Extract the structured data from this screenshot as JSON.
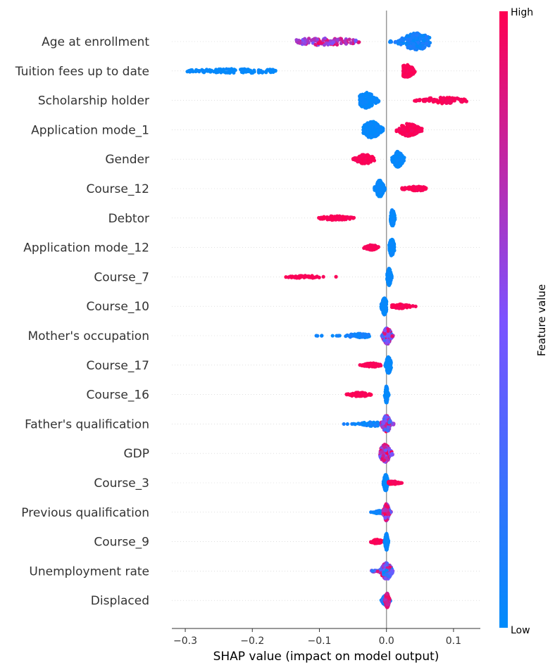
{
  "chart_data": {
    "type": "scatter",
    "xlabel": "SHAP value (impact on model output)",
    "xlim": [
      -0.32,
      0.14
    ],
    "xticks": [
      -0.3,
      -0.2,
      -0.1,
      0.0,
      0.1
    ],
    "xtick_labels": [
      "−0.3",
      "−0.2",
      "−0.1",
      "0.0",
      "0.1"
    ],
    "colorbar": {
      "label": "Feature value",
      "high_label": "High",
      "low_label": "Low",
      "low_color": "#008bfb",
      "mid_color": "#7c52ff",
      "high_color": "#ff0051"
    },
    "features": [
      {
        "name": "Age at enrollment",
        "clusters": [
          {
            "min": -0.135,
            "max": -0.04,
            "peak": -0.095,
            "spread": 0.028,
            "value_min": 0.45,
            "value_max": 1.0,
            "count": 110,
            "h": 0.35
          },
          {
            "min": 0.005,
            "max": 0.065,
            "peak": 0.045,
            "spread": 0.012,
            "value_min": 0.0,
            "value_max": 0.15,
            "count": 200,
            "h": 0.8
          }
        ]
      },
      {
        "name": "Tuition fees up to date",
        "clusters": [
          {
            "min": -0.3,
            "max": -0.165,
            "peak": -0.22,
            "spread": 0.04,
            "value_min": 0.0,
            "value_max": 0.04,
            "count": 110,
            "h": 0.2
          },
          {
            "min": 0.025,
            "max": 0.045,
            "peak": 0.03,
            "spread": 0.006,
            "value_min": 0.96,
            "value_max": 1.0,
            "count": 120,
            "h": 0.6
          }
        ]
      },
      {
        "name": "Scholarship holder",
        "clusters": [
          {
            "min": -0.04,
            "max": -0.01,
            "peak": -0.03,
            "spread": 0.007,
            "value_min": 0.0,
            "value_max": 0.05,
            "count": 180,
            "h": 0.75
          },
          {
            "min": 0.04,
            "max": 0.12,
            "peak": 0.085,
            "spread": 0.018,
            "value_min": 0.95,
            "value_max": 1.0,
            "count": 100,
            "h": 0.3
          }
        ]
      },
      {
        "name": "Application mode_1",
        "clusters": [
          {
            "min": -0.035,
            "max": -0.005,
            "peak": -0.022,
            "spread": 0.007,
            "value_min": 0.0,
            "value_max": 0.05,
            "count": 200,
            "h": 0.8
          },
          {
            "min": 0.015,
            "max": 0.055,
            "peak": 0.033,
            "spread": 0.008,
            "value_min": 0.95,
            "value_max": 1.0,
            "count": 160,
            "h": 0.6
          }
        ]
      },
      {
        "name": "Gender",
        "clusters": [
          {
            "min": -0.05,
            "max": -0.018,
            "peak": -0.032,
            "spread": 0.007,
            "value_min": 0.96,
            "value_max": 1.0,
            "count": 120,
            "h": 0.45
          },
          {
            "min": 0.008,
            "max": 0.027,
            "peak": 0.017,
            "spread": 0.004,
            "value_min": 0.0,
            "value_max": 0.05,
            "count": 180,
            "h": 0.75
          }
        ]
      },
      {
        "name": "Course_12",
        "clusters": [
          {
            "min": -0.018,
            "max": -0.002,
            "peak": -0.01,
            "spread": 0.003,
            "value_min": 0.0,
            "value_max": 0.05,
            "count": 180,
            "h": 0.8
          },
          {
            "min": 0.015,
            "max": 0.06,
            "peak": 0.045,
            "spread": 0.01,
            "value_min": 0.95,
            "value_max": 1.0,
            "count": 80,
            "h": 0.2
          }
        ]
      },
      {
        "name": "Debtor",
        "clusters": [
          {
            "min": -0.105,
            "max": -0.047,
            "peak": -0.075,
            "spread": 0.012,
            "value_min": 0.96,
            "value_max": 1.0,
            "count": 90,
            "h": 0.2
          },
          {
            "min": 0.006,
            "max": 0.013,
            "peak": 0.009,
            "spread": 0.0015,
            "value_min": 0.0,
            "value_max": 0.05,
            "count": 180,
            "h": 0.8
          }
        ]
      },
      {
        "name": "Application mode_12",
        "clusters": [
          {
            "min": -0.035,
            "max": -0.01,
            "peak": -0.022,
            "spread": 0.005,
            "value_min": 0.96,
            "value_max": 1.0,
            "count": 80,
            "h": 0.25
          },
          {
            "min": 0.004,
            "max": 0.012,
            "peak": 0.008,
            "spread": 0.002,
            "value_min": 0.0,
            "value_max": 0.05,
            "count": 180,
            "h": 0.8
          }
        ]
      },
      {
        "name": "Course_7",
        "clusters": [
          {
            "min": -0.15,
            "max": -0.075,
            "peak": -0.12,
            "spread": 0.015,
            "value_min": 0.96,
            "value_max": 1.0,
            "count": 45,
            "h": 0.12
          },
          {
            "min": 0.001,
            "max": 0.008,
            "peak": 0.004,
            "spread": 0.0015,
            "value_min": 0.0,
            "value_max": 0.05,
            "count": 180,
            "h": 0.8
          }
        ]
      },
      {
        "name": "Course_10",
        "clusters": [
          {
            "min": -0.008,
            "max": 0.0,
            "peak": -0.003,
            "spread": 0.002,
            "value_min": 0.0,
            "value_max": 0.05,
            "count": 180,
            "h": 0.8
          },
          {
            "min": 0.008,
            "max": 0.045,
            "peak": 0.02,
            "spread": 0.008,
            "value_min": 0.95,
            "value_max": 1.0,
            "count": 70,
            "h": 0.2
          }
        ]
      },
      {
        "name": "Mother's occupation",
        "clusters": [
          {
            "min": -0.11,
            "max": -0.025,
            "peak": -0.04,
            "spread": 0.01,
            "value_min": 0.0,
            "value_max": 0.15,
            "count": 80,
            "h": 0.2
          },
          {
            "min": -0.008,
            "max": 0.01,
            "peak": 0.001,
            "spread": 0.003,
            "value_min": 0.2,
            "value_max": 1.0,
            "count": 200,
            "h": 0.8
          }
        ]
      },
      {
        "name": "Course_17",
        "clusters": [
          {
            "min": -0.04,
            "max": -0.008,
            "peak": -0.022,
            "spread": 0.006,
            "value_min": 0.96,
            "value_max": 1.0,
            "count": 70,
            "h": 0.2
          },
          {
            "min": -0.002,
            "max": 0.007,
            "peak": 0.003,
            "spread": 0.002,
            "value_min": 0.0,
            "value_max": 0.05,
            "count": 180,
            "h": 0.8
          }
        ]
      },
      {
        "name": "Course_16",
        "clusters": [
          {
            "min": -0.06,
            "max": -0.02,
            "peak": -0.04,
            "spread": 0.008,
            "value_min": 0.96,
            "value_max": 1.0,
            "count": 65,
            "h": 0.2
          },
          {
            "min": -0.003,
            "max": 0.004,
            "peak": 0.0,
            "spread": 0.001,
            "value_min": 0.0,
            "value_max": 0.05,
            "count": 180,
            "h": 0.8
          }
        ]
      },
      {
        "name": "Father's qualification",
        "clusters": [
          {
            "min": -0.075,
            "max": -0.012,
            "peak": -0.02,
            "spread": 0.01,
            "value_min": 0.0,
            "value_max": 0.12,
            "count": 70,
            "h": 0.2
          },
          {
            "min": -0.008,
            "max": 0.012,
            "peak": 0.0,
            "spread": 0.003,
            "value_min": 0.2,
            "value_max": 1.0,
            "count": 200,
            "h": 0.8
          }
        ]
      },
      {
        "name": "GDP",
        "clusters": [
          {
            "min": -0.01,
            "max": 0.012,
            "peak": -0.002,
            "spread": 0.004,
            "value_min": 0.3,
            "value_max": 1.0,
            "count": 260,
            "h": 0.85
          }
        ]
      },
      {
        "name": "Course_3",
        "clusters": [
          {
            "min": -0.005,
            "max": 0.003,
            "peak": -0.001,
            "spread": 0.0015,
            "value_min": 0.0,
            "value_max": 0.05,
            "count": 180,
            "h": 0.8
          },
          {
            "min": 0.003,
            "max": 0.024,
            "peak": 0.01,
            "spread": 0.005,
            "value_min": 0.95,
            "value_max": 1.0,
            "count": 60,
            "h": 0.15
          }
        ]
      },
      {
        "name": "Previous qualification",
        "clusters": [
          {
            "min": -0.025,
            "max": -0.005,
            "peak": -0.01,
            "spread": 0.004,
            "value_min": 0.0,
            "value_max": 0.2,
            "count": 60,
            "h": 0.15
          },
          {
            "min": -0.005,
            "max": 0.007,
            "peak": 0.0,
            "spread": 0.002,
            "value_min": 0.3,
            "value_max": 1.0,
            "count": 200,
            "h": 0.8
          }
        ]
      },
      {
        "name": "Course_9",
        "clusters": [
          {
            "min": -0.025,
            "max": -0.005,
            "peak": -0.014,
            "spread": 0.004,
            "value_min": 0.96,
            "value_max": 1.0,
            "count": 60,
            "h": 0.2
          },
          {
            "min": -0.003,
            "max": 0.003,
            "peak": 0.0,
            "spread": 0.001,
            "value_min": 0.0,
            "value_max": 0.05,
            "count": 180,
            "h": 0.8
          }
        ]
      },
      {
        "name": "Unemployment rate",
        "clusters": [
          {
            "min": -0.025,
            "max": 0.01,
            "peak": 0.0,
            "spread": 0.004,
            "value_min": 0.0,
            "value_max": 1.0,
            "count": 220,
            "h": 0.8
          }
        ]
      },
      {
        "name": "Displaced",
        "clusters": [
          {
            "min": -0.008,
            "max": 0.006,
            "peak": -0.002,
            "spread": 0.002,
            "value_min": 0.0,
            "value_max": 0.3,
            "count": 100,
            "h": 0.5
          },
          {
            "min": -0.003,
            "max": 0.005,
            "peak": 0.001,
            "spread": 0.0015,
            "value_min": 0.7,
            "value_max": 1.0,
            "count": 120,
            "h": 0.7
          }
        ]
      }
    ]
  }
}
